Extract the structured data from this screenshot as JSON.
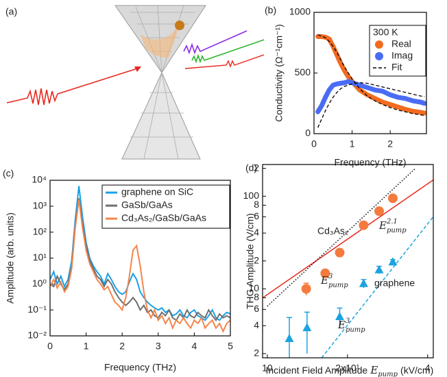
{
  "illustration": {
    "label": "(a)"
  },
  "chart_data": [
    {
      "type": "line",
      "label": "(b)",
      "x_label": "Frequency (THz)",
      "y_label": "Conductivity (Ω⁻¹cm⁻¹)",
      "legend_title": "300 K",
      "legend": "upper right",
      "x": [
        0.1,
        0.2,
        0.3,
        0.4,
        0.5,
        0.6,
        0.7,
        0.8,
        0.9,
        1.0,
        1.2,
        1.4,
        1.6,
        1.8,
        2.0,
        2.2,
        2.4,
        2.6,
        2.8,
        2.9
      ],
      "xlim": [
        0,
        2.95
      ],
      "xticks": [
        0,
        1,
        2
      ],
      "ylim": [
        0,
        1000
      ],
      "yticks": [
        0,
        500,
        1000
      ],
      "series": [
        {
          "name": "Real",
          "color": "#f26b21",
          "style": "markers",
          "values": [
            800,
            800,
            795,
            780,
            720,
            650,
            580,
            520,
            470,
            430,
            360,
            320,
            290,
            260,
            240,
            220,
            200,
            185,
            175,
            170
          ]
        },
        {
          "name": "Imag",
          "color": "#4a6cf5",
          "style": "markers",
          "values": [
            180,
            230,
            300,
            360,
            400,
            410,
            415,
            420,
            430,
            420,
            400,
            380,
            360,
            350,
            320,
            300,
            290,
            270,
            260,
            250
          ]
        },
        {
          "name": "Fit",
          "color": "#000000",
          "style": "dashed",
          "values": [
            815,
            805,
            790,
            760,
            720,
            670,
            610,
            550,
            500,
            450,
            370,
            310,
            270,
            240,
            215,
            195,
            180,
            165,
            155,
            150
          ]
        },
        {
          "color": "#000000",
          "style": "dashed",
          "values": [
            50,
            120,
            190,
            250,
            300,
            340,
            370,
            390,
            400,
            410,
            420,
            415,
            400,
            385,
            370,
            355,
            340,
            325,
            310,
            305
          ]
        }
      ]
    },
    {
      "type": "line",
      "label": "(c)",
      "x_label": "Frequency (THz)",
      "y_label": "Amplitude (arb. units)",
      "legend": "upper right",
      "log_y": true,
      "x": [
        0,
        0.1,
        0.2,
        0.3,
        0.4,
        0.5,
        0.6,
        0.7,
        0.8,
        0.9,
        1.0,
        1.1,
        1.2,
        1.3,
        1.4,
        1.5,
        1.6,
        1.7,
        1.8,
        1.9,
        2.0,
        2.1,
        2.2,
        2.3,
        2.4,
        2.5,
        2.6,
        2.7,
        2.8,
        2.9,
        3.0,
        3.1,
        3.2,
        3.3,
        3.4,
        3.5,
        3.6,
        3.7,
        3.8,
        3.9,
        4.0,
        4.1,
        4.2,
        4.3,
        4.4,
        4.5,
        4.6,
        4.7,
        4.8,
        4.9,
        5.0
      ],
      "xlim": [
        0,
        5
      ],
      "xticks": [
        0,
        1,
        2,
        3,
        4,
        5
      ],
      "ylim": [
        0.01,
        10000
      ],
      "yticks": [
        {
          "value": 0.01,
          "label": "10⁻²"
        },
        {
          "value": 0.1,
          "label": "10⁻¹"
        },
        {
          "value": 1,
          "label": "10⁰"
        },
        {
          "value": 10,
          "label": "10¹"
        },
        {
          "value": 100,
          "label": "10²"
        },
        {
          "value": 1000,
          "label": "10³"
        },
        {
          "value": 10000,
          "label": "10⁴"
        }
      ],
      "series": [
        {
          "name": "graphene on SiC",
          "color": "#1aa0e6",
          "style": "solid",
          "values": [
            1.5,
            3,
            1,
            2,
            0.8,
            1.5,
            8,
            300,
            6000,
            400,
            40,
            10,
            5,
            3,
            2,
            1,
            2.5,
            1.5,
            0.8,
            0.5,
            0.4,
            0.5,
            1.2,
            2.5,
            1.5,
            0.5,
            0.3,
            0.2,
            0.15,
            0.12,
            0.1,
            0.12,
            0.08,
            0.1,
            0.06,
            0.07,
            0.1,
            0.06,
            0.05,
            0.08,
            0.1,
            0.06,
            0.05,
            0.04,
            0.06,
            0.1,
            0.05,
            0.04,
            0.06,
            0.08,
            0.07
          ]
        },
        {
          "name": "GaSb/GaAs",
          "color": "#6e6e6e",
          "style": "solid",
          "values": [
            1,
            0.8,
            2,
            1,
            0.6,
            1,
            5,
            200,
            2000,
            200,
            30,
            8,
            4,
            2,
            1.5,
            0.8,
            1.5,
            1,
            0.5,
            0.3,
            0.2,
            0.15,
            0.2,
            0.3,
            0.2,
            0.1,
            0.15,
            0.08,
            0.1,
            0.06,
            0.05,
            0.08,
            0.06,
            0.1,
            0.05,
            0.04,
            0.07,
            0.05,
            0.1,
            0.06,
            0.05,
            0.08,
            0.06,
            0.05,
            0.1,
            0.06,
            0.04,
            0.07,
            0.05,
            0.06,
            0.05
          ]
        },
        {
          "name": "Cd₃As₂/GaSb/GaAs",
          "color": "#f5844a",
          "style": "solid",
          "values": [
            0.8,
            1.5,
            0.7,
            1.2,
            0.5,
            0.8,
            4,
            150,
            1800,
            150,
            20,
            6,
            3,
            1.5,
            1,
            0.6,
            0.8,
            0.4,
            0.2,
            0.15,
            0.1,
            0.3,
            2,
            20,
            30,
            5,
            0.5,
            0.1,
            0.05,
            0.1,
            0.04,
            0.06,
            0.03,
            0.05,
            0.02,
            0.04,
            0.03,
            0.05,
            0.03,
            0.02,
            0.04,
            0.03,
            0.05,
            0.02,
            0.03,
            0.04,
            0.02,
            0.03,
            0.015,
            0.03,
            0.04
          ]
        }
      ]
    },
    {
      "type": "scatter",
      "label": "(d)",
      "x_label": "Incident Field Amplitude",
      "x_label_symbol": {
        "base": "E",
        "sub": "pump"
      },
      "x_label_unit": "(kV/cm)",
      "y_label": "THG Amplitude (V/cm)",
      "log_x": true,
      "log_y": true,
      "xlim": [
        9.6,
        42
      ],
      "xticks": [
        10,
        {
          "value": 20,
          "label": "2x10¹"
        },
        {
          "value": 40,
          "label": "4"
        }
      ],
      "ylim": [
        1.8,
        220
      ],
      "yticks": [
        2,
        4,
        6,
        8,
        10,
        {
          "value": 20,
          "label": "2"
        },
        {
          "value": 40,
          "label": "4"
        },
        {
          "value": 60,
          "label": "6"
        },
        {
          "value": 80,
          "label": "8"
        },
        100,
        {
          "value": 200,
          "label": "2"
        }
      ],
      "series": [
        {
          "color": "#e8261c",
          "style": "solid",
          "x": [
            9.6,
            42
          ],
          "values": [
            8,
            150
          ]
        },
        {
          "color": "#000000",
          "style": "dotted",
          "x": [
            10,
            36
          ],
          "values": [
            6.5,
            200
          ]
        },
        {
          "color": "#1aa3e0",
          "style": "dashed",
          "x": [
            16,
            42
          ],
          "values": [
            1.8,
            60
          ]
        },
        {
          "color": "#f47b3e",
          "marker": "circle",
          "x": [
            14,
            16.5,
            18.7,
            23,
            26.3,
            29.6
          ],
          "values": [
            10,
            14.7,
            24.6,
            48.6,
            69,
            95
          ],
          "errors": [
            1.5,
            1.5,
            2,
            4,
            6,
            8
          ]
        },
        {
          "color": "#1aa3e0",
          "marker": "triangle",
          "x": [
            12.1,
            14.1,
            18.7,
            23,
            26.3,
            29.6
          ],
          "values": [
            2.9,
            3.8,
            5,
            11.4,
            16,
            19.5
          ],
          "errors": [
            2,
            1.8,
            1.2,
            1.2,
            1.5,
            1.2
          ]
        }
      ],
      "annotations": [
        {
          "text": "Cd₃As₂",
          "color": "#f47b3e"
        },
        {
          "base": "E",
          "sup": "2.1",
          "sub": "pump",
          "color": "#f47b3e"
        },
        {
          "base": "E",
          "sup": "3",
          "sub": "pump",
          "color": "#000000"
        },
        {
          "text": "graphene",
          "color": "#1aa3e0"
        },
        {
          "base": "E",
          "sup": "3",
          "sub": "pump",
          "color": "#1aa3e0"
        }
      ]
    }
  ]
}
